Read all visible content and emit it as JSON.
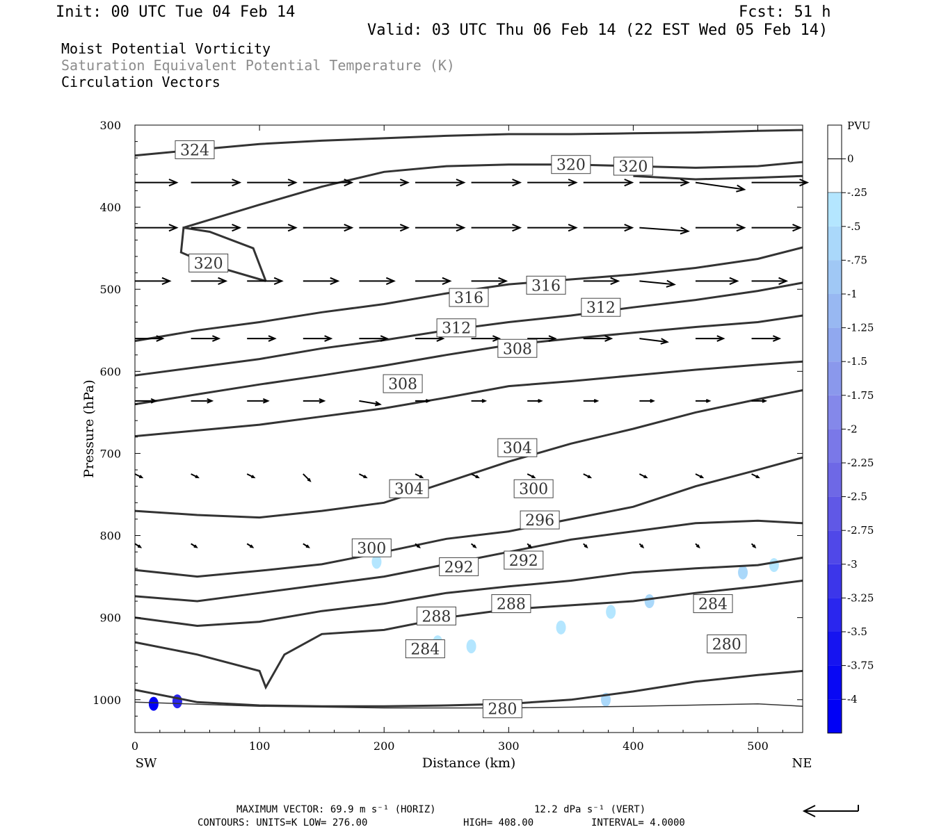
{
  "header": {
    "init": "Init: 00 UTC Tue 04 Feb 14",
    "fcst": "Fcst:   51 h",
    "valid": "Valid: 03 UTC Thu 06 Feb 14 (22 EST Wed 05 Feb 14)"
  },
  "legend": {
    "line1": "Moist Potential Vorticity",
    "line2": "Saturation Equivalent Potential Temperature (K)",
    "line3": "Circulation Vectors",
    "line2_color": "#8c8c8c"
  },
  "footer": {
    "max_vector": "MAXIMUM VECTOR:  69.9 m s⁻¹ (HORIZ)",
    "vert": "12.2 dPa s⁻¹ (VERT)",
    "contours": "CONTOURS:  UNITS=K  LOW=  276.00",
    "high": "HIGH=  408.00",
    "interval": "INTERVAL=   4.0000"
  },
  "colorbar": {
    "title": "PVU",
    "labels": [
      "0",
      "-.25",
      "-.5",
      "-.75",
      "-1",
      "-1.25",
      "-1.5",
      "-1.75",
      "-2",
      "-2.25",
      "-2.5",
      "-2.75",
      "-3",
      "-3.25",
      "-3.5",
      "-3.75",
      "-4"
    ],
    "colors": [
      "#ffffff",
      "#ffffff",
      "#b4e6ff",
      "#aad8fa",
      "#a0c8f5",
      "#98b8f2",
      "#90a8ef",
      "#8a98ec",
      "#8488ea",
      "#7a78e8",
      "#6e68e6",
      "#6058e6",
      "#5048e8",
      "#3c36ea",
      "#2a26ee",
      "#1614f0",
      "#0808f4",
      "#0000f6"
    ]
  },
  "chart_data": {
    "type": "contour",
    "xlabel": "Distance (km)",
    "ylabel": "Pressure (hPa)",
    "x_end_labels": [
      "SW",
      "NE"
    ],
    "xlim": [
      0,
      536
    ],
    "ylim": [
      300,
      1040
    ],
    "y_scale": "linear, inverted",
    "x_ticks": [
      0,
      100,
      200,
      300,
      400,
      500
    ],
    "y_ticks": [
      300,
      400,
      500,
      600,
      700,
      800,
      900,
      1000
    ],
    "contour_units": "K",
    "contour_low": 276,
    "contour_high": 408,
    "contour_interval": 4,
    "contours": [
      {
        "value": 324,
        "points": [
          [
            0,
            337
          ],
          [
            50,
            330
          ],
          [
            100,
            323
          ],
          [
            150,
            319
          ],
          [
            200,
            316
          ],
          [
            250,
            313
          ],
          [
            300,
            311
          ],
          [
            350,
            311
          ],
          [
            400,
            310
          ],
          [
            450,
            309
          ],
          [
            500,
            307
          ],
          [
            536,
            306
          ]
        ]
      },
      {
        "value": 320,
        "points": [
          [
            400,
            362
          ],
          [
            450,
            366
          ],
          [
            500,
            364
          ],
          [
            536,
            362
          ]
        ]
      },
      {
        "value": 320,
        "points": [
          [
            105,
            490
          ],
          [
            95,
            450
          ],
          [
            60,
            430
          ],
          [
            39,
            425
          ],
          [
            37,
            455
          ],
          [
            60,
            470
          ],
          [
            105,
            490
          ]
        ]
      },
      {
        "value": 320,
        "points": [
          [
            39,
            425
          ],
          [
            100,
            397
          ],
          [
            150,
            375
          ],
          [
            200,
            357
          ],
          [
            250,
            350
          ],
          [
            300,
            348
          ],
          [
            350,
            348
          ],
          [
            400,
            350
          ],
          [
            450,
            352
          ],
          [
            500,
            350
          ],
          [
            536,
            345
          ]
        ]
      },
      {
        "value": 316,
        "points": [
          [
            0,
            563
          ],
          [
            50,
            550
          ],
          [
            100,
            540
          ],
          [
            150,
            528
          ],
          [
            200,
            518
          ],
          [
            250,
            505
          ],
          [
            300,
            494
          ],
          [
            350,
            488
          ],
          [
            400,
            482
          ],
          [
            450,
            474
          ],
          [
            500,
            463
          ],
          [
            536,
            449
          ]
        ]
      },
      {
        "value": 312,
        "points": [
          [
            0,
            605
          ],
          [
            50,
            595
          ],
          [
            100,
            585
          ],
          [
            150,
            572
          ],
          [
            200,
            562
          ],
          [
            250,
            550
          ],
          [
            300,
            540
          ],
          [
            350,
            532
          ],
          [
            400,
            522
          ],
          [
            450,
            513
          ],
          [
            500,
            502
          ],
          [
            536,
            492
          ]
        ]
      },
      {
        "value": 308,
        "points": [
          [
            0,
            640
          ],
          [
            50,
            628
          ],
          [
            100,
            616
          ],
          [
            150,
            605
          ],
          [
            200,
            593
          ],
          [
            250,
            580
          ],
          [
            300,
            568
          ],
          [
            350,
            560
          ],
          [
            400,
            553
          ],
          [
            450,
            546
          ],
          [
            500,
            540
          ],
          [
            536,
            532
          ]
        ]
      },
      {
        "value": 304,
        "points": [
          [
            0,
            679
          ],
          [
            50,
            672
          ],
          [
            100,
            665
          ],
          [
            150,
            655
          ],
          [
            200,
            645
          ],
          [
            250,
            632
          ],
          [
            300,
            618
          ],
          [
            350,
            612
          ],
          [
            400,
            605
          ],
          [
            450,
            598
          ],
          [
            500,
            592
          ],
          [
            536,
            588
          ]
        ]
      },
      {
        "value": 300,
        "points": [
          [
            0,
            770
          ],
          [
            50,
            775
          ],
          [
            100,
            778
          ],
          [
            150,
            770
          ],
          [
            200,
            760
          ],
          [
            250,
            735
          ],
          [
            300,
            710
          ],
          [
            350,
            688
          ],
          [
            400,
            670
          ],
          [
            450,
            650
          ],
          [
            500,
            634
          ],
          [
            536,
            623
          ]
        ]
      },
      {
        "value": 296,
        "points": [
          [
            0,
            842
          ],
          [
            50,
            850
          ],
          [
            100,
            843
          ],
          [
            150,
            835
          ],
          [
            200,
            820
          ],
          [
            250,
            804
          ],
          [
            300,
            795
          ],
          [
            350,
            780
          ],
          [
            400,
            765
          ],
          [
            450,
            740
          ],
          [
            500,
            720
          ],
          [
            536,
            705
          ]
        ]
      },
      {
        "value": 292,
        "points": [
          [
            0,
            874
          ],
          [
            50,
            880
          ],
          [
            100,
            870
          ],
          [
            150,
            860
          ],
          [
            200,
            850
          ],
          [
            250,
            835
          ],
          [
            300,
            820
          ],
          [
            350,
            805
          ],
          [
            400,
            795
          ],
          [
            450,
            785
          ],
          [
            500,
            782
          ],
          [
            536,
            785
          ]
        ]
      },
      {
        "value": 288,
        "points": [
          [
            0,
            900
          ],
          [
            50,
            910
          ],
          [
            100,
            905
          ],
          [
            150,
            892
          ],
          [
            200,
            883
          ],
          [
            250,
            870
          ],
          [
            300,
            862
          ],
          [
            350,
            855
          ],
          [
            400,
            845
          ],
          [
            450,
            840
          ],
          [
            500,
            836
          ],
          [
            536,
            827
          ]
        ]
      },
      {
        "value": 284,
        "points": [
          [
            0,
            930
          ],
          [
            50,
            945
          ],
          [
            100,
            965
          ],
          [
            105,
            985
          ],
          [
            120,
            945
          ],
          [
            150,
            920
          ],
          [
            200,
            915
          ],
          [
            250,
            900
          ],
          [
            300,
            890
          ],
          [
            350,
            885
          ],
          [
            400,
            880
          ],
          [
            450,
            870
          ],
          [
            500,
            862
          ],
          [
            536,
            855
          ]
        ]
      },
      {
        "value": 280,
        "points": [
          [
            0,
            988
          ],
          [
            50,
            1003
          ],
          [
            100,
            1007
          ],
          [
            150,
            1008
          ],
          [
            200,
            1008
          ],
          [
            250,
            1007
          ],
          [
            300,
            1005
          ],
          [
            350,
            1000
          ],
          [
            400,
            990
          ],
          [
            450,
            978
          ],
          [
            500,
            970
          ],
          [
            536,
            965
          ]
        ]
      },
      {
        "value": 280,
        "points": [
          [
            0,
            1003
          ],
          [
            100,
            1008
          ],
          [
            200,
            1010
          ],
          [
            300,
            1010
          ],
          [
            400,
            1008
          ],
          [
            500,
            1005
          ],
          [
            536,
            1008
          ]
        ]
      }
    ],
    "contour_labels": [
      {
        "text": "324",
        "x": 48,
        "y": 330
      },
      {
        "text": "320",
        "x": 350,
        "y": 348
      },
      {
        "text": "320",
        "x": 400,
        "y": 350
      },
      {
        "text": "320",
        "x": 59,
        "y": 468
      },
      {
        "text": "316",
        "x": 268,
        "y": 510
      },
      {
        "text": "316",
        "x": 330,
        "y": 495
      },
      {
        "text": "312",
        "x": 258,
        "y": 547
      },
      {
        "text": "312",
        "x": 374,
        "y": 522
      },
      {
        "text": "308",
        "x": 307,
        "y": 572
      },
      {
        "text": "308",
        "x": 215,
        "y": 615
      },
      {
        "text": "304",
        "x": 307,
        "y": 693
      },
      {
        "text": "304",
        "x": 220,
        "y": 743
      },
      {
        "text": "300",
        "x": 320,
        "y": 743
      },
      {
        "text": "300",
        "x": 190,
        "y": 815
      },
      {
        "text": "296",
        "x": 325,
        "y": 781
      },
      {
        "text": "292",
        "x": 260,
        "y": 838
      },
      {
        "text": "292",
        "x": 312,
        "y": 830
      },
      {
        "text": "288",
        "x": 242,
        "y": 898
      },
      {
        "text": "288",
        "x": 302,
        "y": 883
      },
      {
        "text": "284",
        "x": 233,
        "y": 938
      },
      {
        "text": "284",
        "x": 464,
        "y": 883
      },
      {
        "text": "280",
        "x": 475,
        "y": 932
      },
      {
        "text": "280",
        "x": 295,
        "y": 1011
      }
    ],
    "pv_shading": [
      {
        "x": 194,
        "y": 832,
        "value": -0.25
      },
      {
        "x": 243,
        "y": 930,
        "value": -0.25
      },
      {
        "x": 270,
        "y": 935,
        "value": -0.25
      },
      {
        "x": 342,
        "y": 912,
        "value": -0.25
      },
      {
        "x": 382,
        "y": 893,
        "value": -0.25
      },
      {
        "x": 413,
        "y": 880,
        "value": -0.5
      },
      {
        "x": 488,
        "y": 845,
        "value": -0.5
      },
      {
        "x": 513,
        "y": 836,
        "value": -0.25
      },
      {
        "x": 378,
        "y": 1000,
        "value": -0.5
      },
      {
        "x": 15,
        "y": 1005,
        "value": -4
      },
      {
        "x": 34,
        "y": 1002,
        "value": -3.25
      }
    ],
    "vectors": [
      {
        "p": 370,
        "x": [
          0,
          45,
          90,
          135,
          180,
          225,
          270,
          315,
          360,
          405,
          450,
          495
        ],
        "u": [
          0.6,
          0.7,
          0.7,
          0.7,
          0.7,
          0.7,
          0.7,
          0.7,
          0.7,
          0.7,
          0.7,
          0.8
        ],
        "w": [
          0,
          0,
          0,
          0,
          0,
          0,
          0,
          0,
          0,
          0,
          0.1,
          0
        ]
      },
      {
        "p": 425,
        "x": [
          0,
          45,
          90,
          135,
          180,
          225,
          270,
          315,
          360,
          405,
          450,
          495
        ],
        "u": [
          0.6,
          0.7,
          0.7,
          0.7,
          0.7,
          0.7,
          0.7,
          0.7,
          0.7,
          0.7,
          0.7,
          0.7
        ],
        "w": [
          0,
          0,
          0,
          0,
          0,
          0,
          0,
          0,
          0,
          0.05,
          0,
          0
        ]
      },
      {
        "p": 490,
        "x": [
          0,
          45,
          90,
          135,
          180,
          225,
          270,
          315,
          360,
          405,
          450,
          495
        ],
        "u": [
          0.5,
          0.5,
          0.5,
          0.5,
          0.5,
          0.5,
          0.5,
          0.5,
          0.5,
          0.5,
          0.6,
          0.5
        ],
        "w": [
          0,
          0,
          0,
          0,
          0,
          0,
          0,
          0,
          0,
          0.05,
          0,
          0
        ]
      },
      {
        "p": 560,
        "x": [
          0,
          45,
          90,
          135,
          180,
          225,
          270,
          315,
          360,
          405,
          450,
          495
        ],
        "u": [
          0.4,
          0.4,
          0.4,
          0.4,
          0.4,
          0.4,
          0.4,
          0.4,
          0.4,
          0.4,
          0.4,
          0.4
        ],
        "w": [
          0,
          0,
          0,
          0,
          0,
          0,
          0,
          0,
          0,
          0.05,
          0,
          0
        ]
      },
      {
        "p": 636,
        "x": [
          0,
          45,
          90,
          135,
          180,
          225,
          270,
          315,
          360,
          405,
          450,
          495
        ],
        "u": [
          0.3,
          0.3,
          0.3,
          0.3,
          0.3,
          0.2,
          0.2,
          0.2,
          0.2,
          0.2,
          0.2,
          0.2
        ],
        "w": [
          0,
          0,
          0,
          0,
          0.05,
          0,
          0,
          0,
          0,
          0,
          0,
          0
        ]
      },
      {
        "p": 725,
        "x": [
          0,
          45,
          90,
          135,
          180,
          225,
          270,
          315,
          360,
          405,
          450,
          495
        ],
        "u": [
          0.1,
          0.1,
          0.1,
          0.1,
          0.1,
          0.1,
          0.1,
          0.1,
          0.1,
          0.1,
          0.1,
          0.1
        ],
        "w": [
          0.05,
          0.05,
          0.05,
          0.1,
          0.05,
          0.05,
          0.05,
          0.05,
          0.05,
          0.05,
          0.05,
          0.05
        ]
      },
      {
        "p": 810,
        "x": [
          0,
          45,
          90,
          135,
          180,
          225,
          270,
          315,
          360,
          405,
          450,
          495
        ],
        "u": [
          0.08,
          0.08,
          0.08,
          0.08,
          0.06,
          0.06,
          0.06,
          0.05,
          0.05,
          0.05,
          0.05,
          0.05
        ],
        "w": [
          0.05,
          0.05,
          0.05,
          0.05,
          0.05,
          0.05,
          0.05,
          0.05,
          0.05,
          0.05,
          0.05,
          0.05
        ]
      }
    ]
  }
}
